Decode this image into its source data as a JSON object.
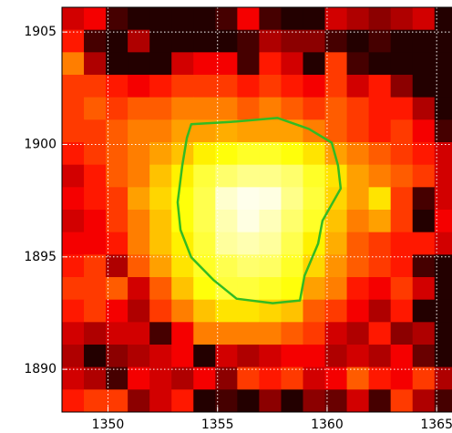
{
  "chart_data": {
    "type": "heatmap",
    "x": [
      1348.4,
      1349.4,
      1350.4,
      1351.4,
      1352.4,
      1353.4,
      1354.4,
      1355.4,
      1356.4,
      1357.4,
      1358.4,
      1359.4,
      1360.4,
      1361.4,
      1362.4,
      1363.4,
      1364.4,
      1365.4
    ],
    "y": [
      1905.6,
      1904.6,
      1903.6,
      1902.6,
      1901.6,
      1900.6,
      1899.6,
      1898.6,
      1897.6,
      1896.6,
      1895.6,
      1894.6,
      1893.6,
      1892.6,
      1891.6,
      1890.6,
      1889.6,
      1888.6
    ],
    "z": [
      [
        30,
        35,
        10,
        5,
        5,
        5,
        5,
        10,
        35,
        10,
        5,
        5,
        30,
        25,
        20,
        25,
        30,
        5
      ],
      [
        40,
        10,
        5,
        25,
        5,
        5,
        5,
        5,
        10,
        25,
        20,
        20,
        10,
        5,
        10,
        5,
        5,
        5
      ],
      [
        55,
        25,
        5,
        5,
        5,
        30,
        35,
        35,
        10,
        40,
        30,
        5,
        45,
        10,
        5,
        5,
        5,
        5
      ],
      [
        45,
        45,
        40,
        35,
        40,
        45,
        45,
        45,
        40,
        45,
        40,
        35,
        45,
        30,
        40,
        20,
        5,
        5
      ],
      [
        45,
        50,
        45,
        50,
        50,
        55,
        55,
        55,
        50,
        55,
        50,
        45,
        50,
        45,
        40,
        40,
        25,
        5
      ],
      [
        45,
        45,
        50,
        55,
        55,
        60,
        60,
        62,
        60,
        60,
        60,
        55,
        50,
        45,
        40,
        45,
        35,
        10
      ],
      [
        40,
        45,
        50,
        55,
        60,
        65,
        72,
        75,
        78,
        78,
        75,
        70,
        60,
        55,
        50,
        45,
        40,
        30
      ],
      [
        30,
        40,
        50,
        55,
        65,
        72,
        80,
        85,
        88,
        88,
        85,
        78,
        70,
        60,
        55,
        50,
        45,
        30
      ],
      [
        35,
        40,
        45,
        60,
        68,
        75,
        82,
        95,
        98,
        97,
        88,
        80,
        68,
        60,
        70,
        45,
        10,
        30
      ],
      [
        30,
        35,
        45,
        55,
        65,
        75,
        82,
        92,
        97,
        93,
        85,
        78,
        65,
        55,
        60,
        45,
        5,
        35
      ],
      [
        35,
        35,
        40,
        55,
        65,
        72,
        80,
        90,
        92,
        90,
        82,
        72,
        62,
        50,
        45,
        40,
        40,
        30
      ],
      [
        40,
        45,
        25,
        50,
        60,
        70,
        78,
        82,
        85,
        84,
        78,
        68,
        58,
        50,
        45,
        40,
        10,
        5
      ],
      [
        45,
        45,
        50,
        30,
        50,
        65,
        75,
        80,
        80,
        78,
        75,
        60,
        55,
        40,
        35,
        45,
        30,
        5
      ],
      [
        40,
        45,
        35,
        25,
        45,
        55,
        65,
        70,
        70,
        68,
        65,
        50,
        45,
        35,
        25,
        40,
        5,
        5
      ],
      [
        30,
        25,
        30,
        30,
        10,
        35,
        55,
        55,
        55,
        55,
        50,
        45,
        30,
        25,
        40,
        20,
        25,
        5
      ],
      [
        25,
        5,
        20,
        25,
        30,
        35,
        5,
        30,
        25,
        30,
        35,
        35,
        25,
        30,
        25,
        35,
        15,
        5
      ],
      [
        30,
        25,
        10,
        35,
        30,
        25,
        35,
        20,
        45,
        40,
        45,
        30,
        35,
        50,
        40,
        35,
        45,
        25
      ],
      [
        40,
        45,
        45,
        20,
        30,
        40,
        5,
        10,
        5,
        20,
        5,
        20,
        15,
        30,
        10,
        45,
        25,
        10
      ]
    ],
    "clim": [
      0,
      100
    ],
    "colormap": "hot",
    "xlim": [
      1347.9,
      1365.7
    ],
    "ylim": [
      1888.1,
      1906.1
    ],
    "xticks": [
      1350,
      1355,
      1360,
      1365
    ],
    "yticks": [
      1890,
      1895,
      1900,
      1905
    ],
    "grid": true,
    "contour": {
      "color": "#33bb22",
      "x": [
        1353.8,
        1355.87,
        1357.73,
        1359.17,
        1360.21,
        1360.5,
        1360.62,
        1359.79,
        1359.59,
        1358.97,
        1358.76,
        1357.52,
        1355.87,
        1354.83,
        1353.8,
        1353.31,
        1353.18,
        1353.39,
        1353.6
      ],
      "y": [
        1900.9,
        1901.02,
        1901.18,
        1900.69,
        1900.08,
        1899.06,
        1898.04,
        1896.61,
        1895.59,
        1894.16,
        1893.06,
        1892.94,
        1893.14,
        1893.96,
        1894.98,
        1896.2,
        1897.43,
        1899.06,
        1900.29
      ]
    }
  }
}
